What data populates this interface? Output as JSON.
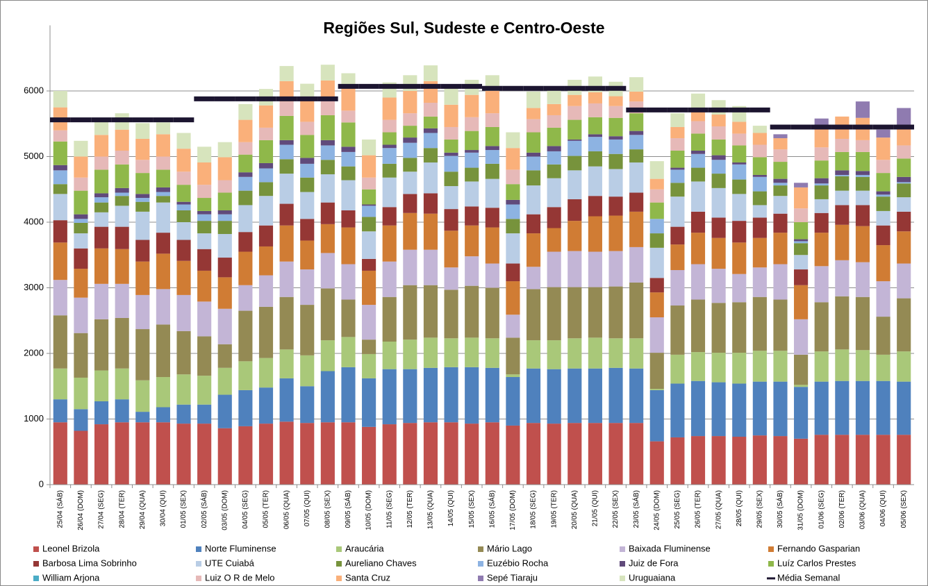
{
  "chart_data": {
    "type": "bar",
    "stacked": true,
    "title": "Regiões Sul, Sudeste e Centro-Oeste",
    "categories": [
      "25/04 (SÁB)",
      "26/04 (DOM)",
      "27/04 (SEG)",
      "28/04 (TER)",
      "29/04 (QUA)",
      "30/04 (QUI)",
      "01/05 (SEX)",
      "02/05 (SÁB)",
      "03/05 (DOM)",
      "04/05 (SEG)",
      "05/05 (TER)",
      "06/05 (QUA)",
      "07/05 (QUI)",
      "08/05 (SEX)",
      "09/05 (SÁB)",
      "10/05 (DOM)",
      "11/05 (SEG)",
      "12/05 (TER)",
      "13/05 (QUA)",
      "14/05 (QUI)",
      "15/05 (SEX)",
      "16/05 (SÁB)",
      "17/05 (DOM)",
      "18/05 (SEG)",
      "19/05 (TER)",
      "20/05 (QUA)",
      "21/05 (QUI)",
      "22/05 (SEX)",
      "23/05 (SÁB)",
      "24/05 (DOM)",
      "25/05 (SEG)",
      "26/05 (TER)",
      "27/05 (QUA)",
      "28/05 (QUI)",
      "29/05 (SEX)",
      "30/05 (SÁB)",
      "31/05 (DOM)",
      "01/06 (SEG)",
      "02/06 (TER)",
      "03/06 (QUA)",
      "04/06 (QUI)",
      "05/06 (SEX)"
    ],
    "ylim": [
      0,
      7000
    ],
    "yticks": [
      0,
      1000,
      2000,
      3000,
      4000,
      5000,
      6000
    ],
    "grid": true,
    "legend": "bottom",
    "series": [
      {
        "name": "Leonel Brizola",
        "color": "#c0504d",
        "values": [
          950,
          820,
          920,
          950,
          950,
          950,
          930,
          930,
          860,
          890,
          930,
          960,
          940,
          950,
          950,
          880,
          920,
          940,
          950,
          950,
          930,
          950,
          900,
          940,
          930,
          940,
          940,
          940,
          940,
          660,
          720,
          740,
          740,
          730,
          750,
          740,
          700,
          760,
          760,
          760,
          760,
          760
        ]
      },
      {
        "name": "Norte Fluminense",
        "color": "#4f81bd",
        "values": [
          350,
          330,
          350,
          350,
          160,
          230,
          290,
          290,
          510,
          550,
          550,
          660,
          560,
          780,
          840,
          740,
          840,
          820,
          830,
          840,
          860,
          830,
          740,
          830,
          830,
          830,
          830,
          840,
          830,
          780,
          820,
          840,
          820,
          810,
          820,
          830,
          790,
          810,
          820,
          820,
          820,
          810
        ]
      },
      {
        "name": "Araucária",
        "color": "#a9c879",
        "values": [
          470,
          480,
          470,
          470,
          480,
          460,
          460,
          440,
          410,
          440,
          450,
          440,
          470,
          470,
          460,
          370,
          420,
          450,
          460,
          440,
          450,
          450,
          40,
          430,
          440,
          460,
          470,
          450,
          460,
          20,
          440,
          440,
          450,
          470,
          470,
          470,
          30,
          460,
          480,
          470,
          400,
          460
        ]
      },
      {
        "name": "Mário Lago",
        "color": "#948a54",
        "values": [
          810,
          680,
          780,
          770,
          780,
          800,
          660,
          600,
          360,
          770,
          780,
          800,
          770,
          790,
          570,
          220,
          680,
          830,
          800,
          740,
          790,
          770,
          560,
          780,
          810,
          780,
          770,
          790,
          850,
          550,
          750,
          800,
          760,
          770,
          820,
          780,
          460,
          750,
          810,
          810,
          580,
          810
        ]
      },
      {
        "name": "Baixada Fluminense",
        "color": "#c3b5d6",
        "values": [
          540,
          540,
          540,
          520,
          520,
          540,
          550,
          530,
          540,
          390,
          480,
          540,
          540,
          540,
          540,
          530,
          540,
          540,
          540,
          340,
          450,
          370,
          350,
          340,
          540,
          550,
          540,
          540,
          540,
          540,
          540,
          540,
          520,
          430,
          450,
          540,
          540,
          550,
          550,
          530,
          540,
          530
        ]
      },
      {
        "name": "Fernando Gasparian",
        "color": "#d07c34",
        "values": [
          570,
          440,
          540,
          530,
          510,
          540,
          520,
          470,
          480,
          510,
          440,
          550,
          440,
          440,
          560,
          520,
          550,
          560,
          550,
          560,
          470,
          550,
          510,
          510,
          360,
          460,
          540,
          540,
          540,
          380,
          390,
          480,
          470,
          480,
          450,
          480,
          520,
          510,
          540,
          550,
          550,
          490
        ]
      },
      {
        "name": "Barbosa Lima Sobrinho",
        "color": "#953735",
        "values": [
          340,
          310,
          330,
          340,
          330,
          320,
          320,
          330,
          300,
          300,
          320,
          330,
          330,
          330,
          260,
          180,
          280,
          290,
          310,
          330,
          290,
          300,
          270,
          290,
          320,
          330,
          310,
          290,
          290,
          220,
          270,
          320,
          310,
          330,
          310,
          290,
          240,
          300,
          300,
          320,
          300,
          300
        ]
      },
      {
        "name": "UTE Cuiabá",
        "color": "#b9cde5",
        "values": [
          400,
          230,
          220,
          320,
          430,
          460,
          270,
          240,
          360,
          410,
          450,
          460,
          410,
          430,
          460,
          420,
          450,
          340,
          470,
          350,
          380,
          440,
          460,
          440,
          440,
          440,
          450,
          420,
          460,
          460,
          460,
          460,
          450,
          410,
          190,
          270,
          220,
          210,
          220,
          220,
          220,
          220
        ]
      },
      {
        "name": "Aureliano Chaves",
        "color": "#77933c",
        "values": [
          150,
          160,
          150,
          150,
          150,
          100,
          180,
          190,
          200,
          220,
          210,
          220,
          220,
          220,
          210,
          220,
          210,
          210,
          220,
          220,
          210,
          230,
          220,
          230,
          210,
          220,
          230,
          230,
          200,
          220,
          210,
          210,
          220,
          220,
          210,
          160,
          180,
          210,
          220,
          210,
          220,
          210
        ]
      },
      {
        "name": "Euzébio Rocha",
        "color": "#8db3e2",
        "values": [
          210,
          60,
          80,
          50,
          60,
          60,
          90,
          100,
          100,
          210,
          210,
          220,
          210,
          220,
          220,
          170,
          240,
          230,
          230,
          240,
          230,
          210,
          220,
          210,
          200,
          230,
          220,
          220,
          220,
          220,
          200,
          210,
          210,
          230,
          220,
          40,
          30,
          30,
          20,
          30,
          30,
          20
        ]
      },
      {
        "name": "Juiz de Fora",
        "color": "#604a7b",
        "values": [
          80,
          70,
          60,
          70,
          60,
          70,
          40,
          50,
          60,
          70,
          80,
          70,
          90,
          80,
          80,
          20,
          50,
          80,
          70,
          50,
          40,
          60,
          70,
          60,
          80,
          20,
          40,
          50,
          60,
          0,
          30,
          50,
          70,
          30,
          30,
          60,
          30,
          80,
          70,
          60,
          50,
          80
        ]
      },
      {
        "name": "Luíz Carlos Prestes",
        "color": "#8fb84a",
        "values": [
          360,
          360,
          360,
          360,
          320,
          270,
          260,
          200,
          270,
          270,
          350,
          370,
          350,
          380,
          370,
          230,
          190,
          180,
          180,
          200,
          290,
          290,
          240,
          310,
          280,
          300,
          260,
          280,
          270,
          250,
          260,
          260,
          240,
          260,
          270,
          260,
          260,
          270,
          280,
          290,
          280,
          280
        ]
      },
      {
        "name": "William Arjona",
        "color": "#4bacc6",
        "values": [
          0,
          0,
          0,
          0,
          0,
          0,
          0,
          0,
          0,
          0,
          0,
          0,
          0,
          0,
          0,
          0,
          0,
          0,
          0,
          0,
          0,
          0,
          0,
          0,
          0,
          0,
          0,
          0,
          0,
          0,
          0,
          0,
          0,
          0,
          0,
          0,
          0,
          0,
          0,
          0,
          0,
          0
        ]
      },
      {
        "name": "Luiz O R de Melo",
        "color": "#e6b9b8",
        "values": [
          170,
          200,
          200,
          210,
          200,
          200,
          200,
          200,
          190,
          190,
          190,
          220,
          200,
          220,
          180,
          180,
          190,
          190,
          210,
          190,
          210,
          210,
          220,
          200,
          190,
          210,
          210,
          180,
          180,
          200,
          190,
          190,
          200,
          180,
          190,
          190,
          210,
          200,
          200,
          180,
          200,
          200
        ]
      },
      {
        "name": "Santa Cruz",
        "color": "#fab07a",
        "values": [
          350,
          320,
          330,
          320,
          320,
          340,
          350,
          340,
          350,
          340,
          340,
          310,
          330,
          310,
          340,
          340,
          340,
          340,
          330,
          340,
          340,
          340,
          330,
          170,
          170,
          170,
          170,
          150,
          150,
          160,
          170,
          190,
          180,
          180,
          180,
          170,
          320,
          330,
          340,
          340,
          340,
          290
        ]
      },
      {
        "name": "Sepé Tiaraju",
        "color": "#8f7bb0",
        "values": [
          0,
          0,
          0,
          0,
          0,
          0,
          0,
          0,
          0,
          0,
          0,
          0,
          0,
          0,
          0,
          0,
          0,
          0,
          0,
          0,
          0,
          0,
          0,
          0,
          0,
          0,
          0,
          0,
          0,
          0,
          0,
          0,
          0,
          0,
          0,
          60,
          70,
          110,
          0,
          250,
          120,
          280
        ]
      },
      {
        "name": "Uruguaiana",
        "color": "#d7e4bd",
        "values": [
          250,
          240,
          200,
          250,
          240,
          180,
          240,
          240,
          230,
          240,
          250,
          230,
          250,
          240,
          230,
          240,
          230,
          240,
          240,
          250,
          230,
          240,
          240,
          250,
          230,
          230,
          240,
          220,
          220,
          270,
          210,
          230,
          220,
          240,
          110,
          0,
          0,
          0,
          0,
          0,
          0,
          0
        ]
      },
      {
        "name": "Média Semanal",
        "color": "#1c1530",
        "type": "line",
        "values": [
          5560,
          5560,
          5560,
          5560,
          5560,
          5560,
          5560,
          5880,
          5880,
          5880,
          5880,
          5880,
          5880,
          5880,
          6070,
          6070,
          6070,
          6070,
          6070,
          6070,
          6070,
          6040,
          6040,
          6040,
          6040,
          6040,
          6040,
          6040,
          5710,
          5710,
          5710,
          5710,
          5710,
          5710,
          5710,
          5450,
          5450,
          5450,
          5450,
          5450,
          5450,
          5450
        ]
      }
    ]
  }
}
